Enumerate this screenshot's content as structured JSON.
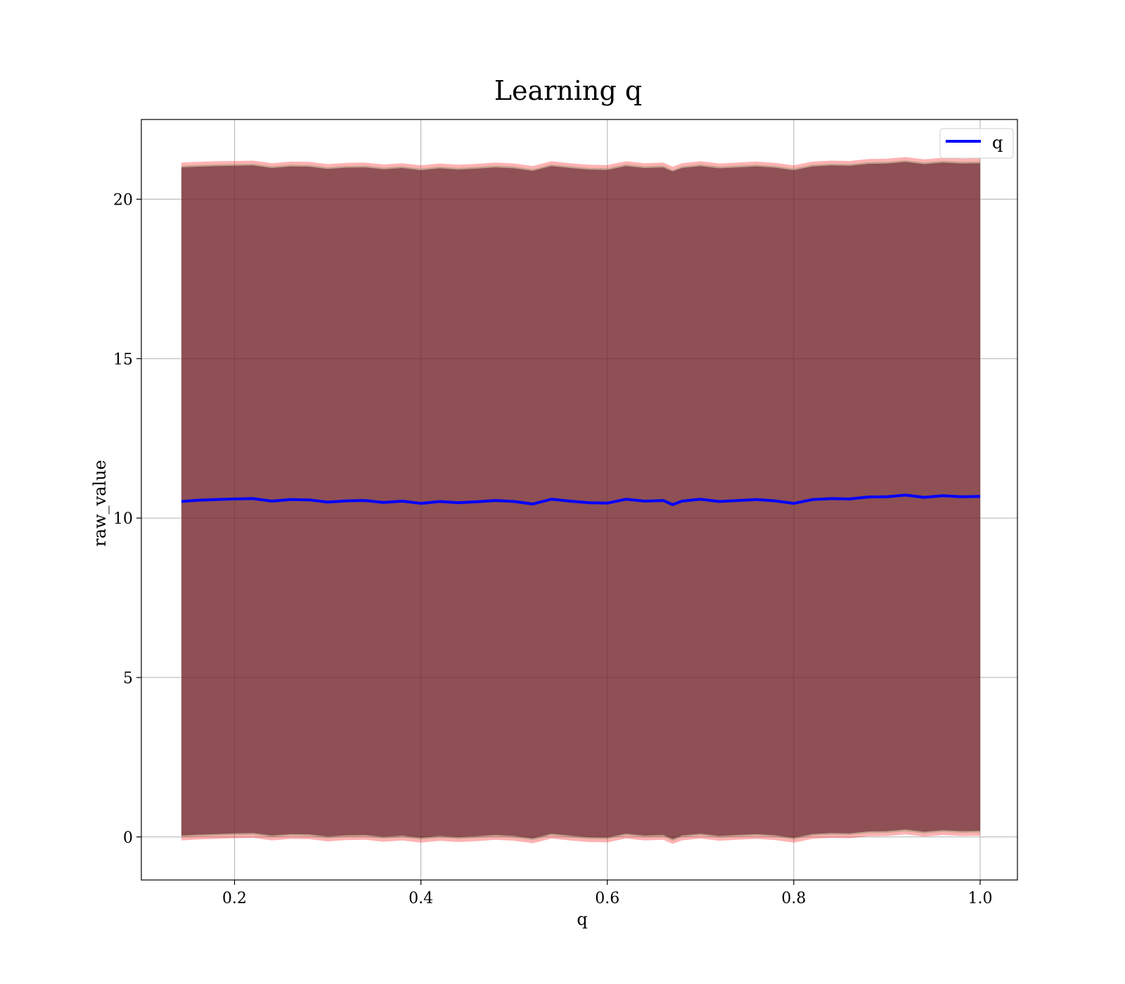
{
  "chart_data": {
    "type": "line",
    "title": "Learning q",
    "xlabel": "q",
    "ylabel": "raw_value",
    "xlim": [
      0.1,
      1.04
    ],
    "ylim": [
      -1.35,
      22.5
    ],
    "xticks": [
      0.2,
      0.4,
      0.6,
      0.8,
      1.0
    ],
    "xtick_labels": [
      "0.2",
      "0.4",
      "0.6",
      "0.8",
      "1.0"
    ],
    "yticks": [
      0,
      5,
      10,
      15,
      20
    ],
    "ytick_labels": [
      "0",
      "5",
      "10",
      "15",
      "20"
    ],
    "grid": true,
    "legend": {
      "placement": "upper right",
      "entries": [
        "q"
      ]
    },
    "series": [
      {
        "name": "q",
        "color": "#0000ff",
        "x": [
          0.143,
          0.16,
          0.18,
          0.2,
          0.22,
          0.24,
          0.26,
          0.28,
          0.3,
          0.32,
          0.34,
          0.36,
          0.38,
          0.4,
          0.42,
          0.44,
          0.46,
          0.48,
          0.5,
          0.52,
          0.54,
          0.56,
          0.58,
          0.6,
          0.62,
          0.64,
          0.66,
          0.67,
          0.68,
          0.7,
          0.72,
          0.74,
          0.76,
          0.78,
          0.8,
          0.82,
          0.84,
          0.86,
          0.88,
          0.9,
          0.92,
          0.94,
          0.96,
          0.98,
          1.0
        ],
        "y": [
          10.52,
          10.56,
          10.58,
          10.6,
          10.61,
          10.53,
          10.58,
          10.57,
          10.5,
          10.54,
          10.55,
          10.49,
          10.53,
          10.46,
          10.52,
          10.48,
          10.51,
          10.55,
          10.52,
          10.44,
          10.59,
          10.53,
          10.48,
          10.47,
          10.59,
          10.53,
          10.55,
          10.42,
          10.53,
          10.59,
          10.52,
          10.55,
          10.58,
          10.54,
          10.46,
          10.58,
          10.61,
          10.6,
          10.66,
          10.67,
          10.72,
          10.65,
          10.7,
          10.67,
          10.68
        ]
      }
    ],
    "bands": [
      {
        "color": "#ff0000",
        "opacity": 0.3,
        "upper": [
          21.15,
          21.17,
          21.19,
          21.2,
          21.21,
          21.13,
          21.18,
          21.17,
          21.1,
          21.14,
          21.15,
          21.09,
          21.13,
          21.06,
          21.12,
          21.08,
          21.11,
          21.15,
          21.12,
          21.04,
          21.19,
          21.13,
          21.08,
          21.07,
          21.19,
          21.13,
          21.15,
          21.02,
          21.13,
          21.19,
          21.12,
          21.15,
          21.18,
          21.14,
          21.06,
          21.18,
          21.21,
          21.2,
          21.26,
          21.27,
          21.32,
          21.25,
          21.3,
          21.27,
          21.28
        ],
        "lower": [
          -0.11,
          -0.08,
          -0.06,
          -0.04,
          -0.03,
          -0.11,
          -0.06,
          -0.07,
          -0.14,
          -0.1,
          -0.09,
          -0.15,
          -0.11,
          -0.18,
          -0.12,
          -0.16,
          -0.13,
          -0.09,
          -0.12,
          -0.2,
          -0.05,
          -0.11,
          -0.16,
          -0.17,
          -0.05,
          -0.11,
          -0.09,
          -0.22,
          -0.11,
          -0.05,
          -0.12,
          -0.09,
          -0.06,
          -0.1,
          -0.18,
          -0.06,
          -0.03,
          -0.04,
          0.02,
          0.03,
          0.08,
          0.01,
          0.06,
          0.03,
          0.04
        ]
      },
      {
        "color": "#3a7a3a",
        "opacity": 0.3,
        "upper": [
          21.05,
          21.07,
          21.09,
          21.1,
          21.11,
          21.03,
          21.08,
          21.07,
          21.0,
          21.04,
          21.05,
          20.99,
          21.03,
          20.96,
          21.02,
          20.98,
          21.01,
          21.05,
          21.02,
          20.94,
          21.09,
          21.03,
          20.98,
          20.97,
          21.09,
          21.03,
          21.05,
          20.92,
          21.03,
          21.09,
          21.02,
          21.05,
          21.08,
          21.04,
          20.96,
          21.08,
          21.11,
          21.1,
          21.16,
          21.17,
          21.22,
          21.15,
          21.2,
          21.17,
          21.18
        ],
        "lower": [
          -0.01,
          0.02,
          0.04,
          0.06,
          0.07,
          -0.01,
          0.04,
          0.03,
          -0.04,
          0.0,
          0.01,
          -0.05,
          -0.01,
          -0.08,
          -0.02,
          -0.06,
          -0.03,
          0.01,
          -0.02,
          -0.1,
          0.05,
          -0.01,
          -0.06,
          -0.07,
          0.05,
          -0.01,
          0.01,
          -0.12,
          -0.01,
          0.05,
          -0.02,
          0.01,
          0.04,
          0.0,
          -0.08,
          0.04,
          0.07,
          0.06,
          0.12,
          0.13,
          0.18,
          0.11,
          0.16,
          0.13,
          0.14
        ]
      },
      {
        "color": "#6a1a2e",
        "opacity": 0.6,
        "upper": [
          21.0,
          21.02,
          21.04,
          21.05,
          21.06,
          20.98,
          21.03,
          21.02,
          20.95,
          20.99,
          21.0,
          20.94,
          20.98,
          20.91,
          20.97,
          20.93,
          20.96,
          21.0,
          20.97,
          20.89,
          21.04,
          20.98,
          20.93,
          20.92,
          21.04,
          20.98,
          21.0,
          20.87,
          20.98,
          21.04,
          20.97,
          21.0,
          21.03,
          20.99,
          20.91,
          21.03,
          21.06,
          21.05,
          21.11,
          21.12,
          21.17,
          21.1,
          21.15,
          21.12,
          21.13
        ],
        "lower": [
          0.04,
          0.07,
          0.09,
          0.11,
          0.12,
          0.04,
          0.09,
          0.08,
          0.01,
          0.05,
          0.06,
          0.0,
          0.04,
          -0.03,
          0.03,
          -0.01,
          0.02,
          0.06,
          0.03,
          -0.05,
          0.1,
          0.04,
          -0.01,
          -0.02,
          0.1,
          0.04,
          0.06,
          -0.07,
          0.04,
          0.1,
          0.03,
          0.06,
          0.09,
          0.05,
          -0.03,
          0.09,
          0.12,
          0.11,
          0.17,
          0.18,
          0.23,
          0.16,
          0.21,
          0.18,
          0.19
        ]
      }
    ]
  }
}
